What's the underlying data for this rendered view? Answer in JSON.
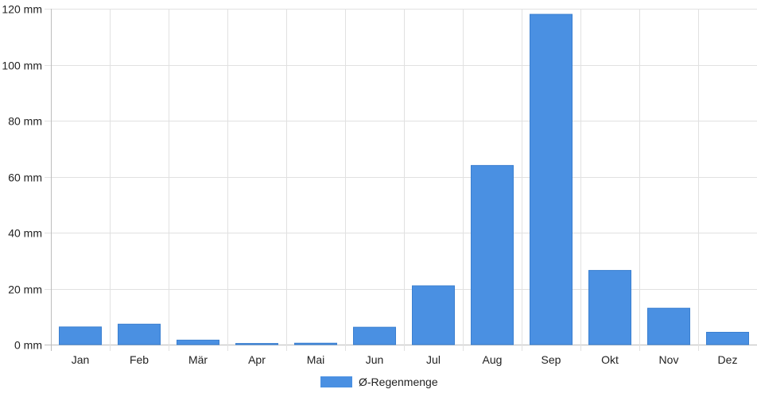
{
  "chart_data": {
    "type": "bar",
    "title": "",
    "xlabel": "",
    "ylabel": "",
    "categories": [
      "Jan",
      "Feb",
      "Mär",
      "Apr",
      "Mai",
      "Jun",
      "Jul",
      "Aug",
      "Sep",
      "Okt",
      "Nov",
      "Dez"
    ],
    "series": [
      {
        "name": "Ø-Regenmenge",
        "values": [
          6.3,
          7.3,
          1.6,
          0.4,
          0.5,
          6.2,
          21,
          64,
          118,
          26.5,
          13,
          4.4
        ]
      }
    ],
    "ylim": [
      0,
      120
    ],
    "yticks": [
      0,
      20,
      40,
      60,
      80,
      100,
      120
    ],
    "y_unit_suffix": " mm",
    "grid": true,
    "legend_position": "bottom",
    "colors": {
      "bar": "#4a90e2",
      "bar_border": "#3a7fd0",
      "grid": "#e1e1e1",
      "axis": "#bdbdbd"
    }
  }
}
